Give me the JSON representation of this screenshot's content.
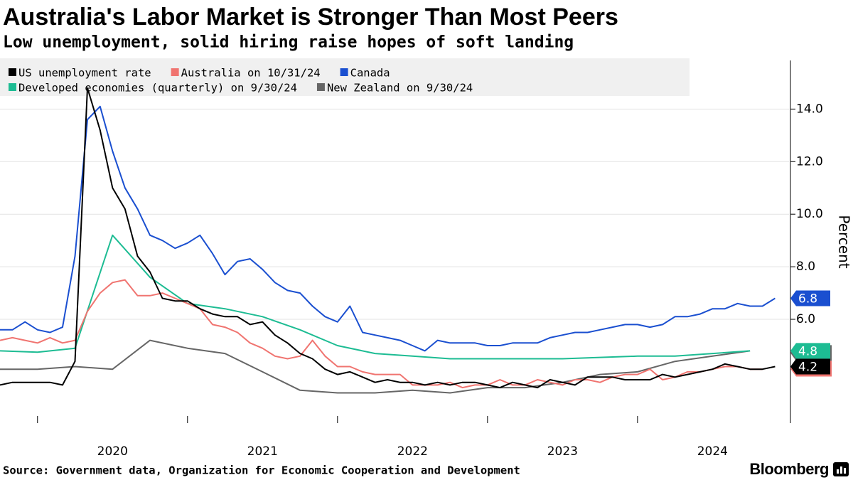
{
  "chart_data": {
    "type": "line",
    "title": "Australia's Labor Market is Stronger Than Most Peers",
    "subtitle": "Low unemployment, solid hiring raise hopes of soft landing",
    "ylabel": "Percent",
    "source": "Source: Government data, Organization for Economic Cooperation and Development",
    "brand": "Bloomberg",
    "xlim": [
      2019.75,
      2025.01
    ],
    "xticks": [
      {
        "value": 2020.5,
        "label": "2020"
      },
      {
        "value": 2021.5,
        "label": "2021"
      },
      {
        "value": 2022.5,
        "label": "2022"
      },
      {
        "value": 2023.5,
        "label": "2023"
      },
      {
        "value": 2024.5,
        "label": "2024"
      }
    ],
    "year_marks": [
      2020,
      2021,
      2022,
      2023,
      2024
    ],
    "ylim": [
      2.05,
      15.85
    ],
    "yticks": [
      {
        "value": 6,
        "label": "6.0"
      },
      {
        "value": 8,
        "label": "8.0"
      },
      {
        "value": 10,
        "label": "10.0"
      },
      {
        "value": 12,
        "label": "12.0"
      },
      {
        "value": 14,
        "label": "14.0"
      }
    ],
    "grid": true,
    "series": [
      {
        "name": "US unemployment rate",
        "color": "#000000",
        "x": [
          2019.75,
          2019.833,
          2019.917,
          2020,
          2020.083,
          2020.167,
          2020.25,
          2020.333,
          2020.417,
          2020.5,
          2020.583,
          2020.667,
          2020.75,
          2020.833,
          2020.917,
          2021,
          2021.083,
          2021.167,
          2021.25,
          2021.333,
          2021.417,
          2021.5,
          2021.583,
          2021.667,
          2021.75,
          2021.833,
          2021.917,
          2022,
          2022.083,
          2022.167,
          2022.25,
          2022.333,
          2022.417,
          2022.5,
          2022.583,
          2022.667,
          2022.75,
          2022.833,
          2022.917,
          2023,
          2023.083,
          2023.167,
          2023.25,
          2023.333,
          2023.417,
          2023.5,
          2023.583,
          2023.667,
          2023.75,
          2023.833,
          2023.917,
          2024,
          2024.083,
          2024.167,
          2024.25,
          2024.333,
          2024.417,
          2024.5,
          2024.583,
          2024.667,
          2024.75,
          2024.833,
          2024.917
        ],
        "values": [
          3.5,
          3.6,
          3.6,
          3.6,
          3.6,
          3.5,
          4.4,
          14.8,
          13.2,
          11.0,
          10.2,
          8.4,
          7.8,
          6.8,
          6.7,
          6.7,
          6.4,
          6.2,
          6.1,
          6.1,
          5.8,
          5.9,
          5.4,
          5.1,
          4.7,
          4.5,
          4.1,
          3.9,
          4.0,
          3.8,
          3.6,
          3.7,
          3.6,
          3.6,
          3.5,
          3.6,
          3.5,
          3.6,
          3.6,
          3.5,
          3.4,
          3.6,
          3.5,
          3.4,
          3.7,
          3.6,
          3.5,
          3.8,
          3.8,
          3.8,
          3.7,
          3.7,
          3.7,
          3.9,
          3.8,
          3.9,
          4.0,
          4.1,
          4.3,
          4.2,
          4.1,
          4.1,
          4.2
        ]
      },
      {
        "name": "Australia on 10/31/24",
        "color": "#f07470",
        "x": [
          2019.75,
          2019.833,
          2019.917,
          2020,
          2020.083,
          2020.167,
          2020.25,
          2020.333,
          2020.417,
          2020.5,
          2020.583,
          2020.667,
          2020.75,
          2020.833,
          2020.917,
          2021,
          2021.083,
          2021.167,
          2021.25,
          2021.333,
          2021.417,
          2021.5,
          2021.583,
          2021.667,
          2021.75,
          2021.833,
          2021.917,
          2022,
          2022.083,
          2022.167,
          2022.25,
          2022.333,
          2022.417,
          2022.5,
          2022.583,
          2022.667,
          2022.75,
          2022.833,
          2022.917,
          2023,
          2023.083,
          2023.167,
          2023.25,
          2023.333,
          2023.417,
          2023.5,
          2023.583,
          2023.667,
          2023.75,
          2023.833,
          2023.917,
          2024,
          2024.083,
          2024.167,
          2024.25,
          2024.333,
          2024.417,
          2024.5,
          2024.583,
          2024.667,
          2024.75,
          2024.833
        ],
        "values": [
          5.2,
          5.3,
          5.2,
          5.1,
          5.3,
          5.1,
          5.2,
          6.3,
          7.0,
          7.4,
          7.5,
          6.9,
          6.9,
          7.0,
          6.8,
          6.6,
          6.4,
          5.8,
          5.7,
          5.5,
          5.1,
          4.9,
          4.6,
          4.5,
          4.6,
          5.2,
          4.6,
          4.2,
          4.2,
          4.0,
          3.9,
          3.9,
          3.9,
          3.5,
          3.5,
          3.5,
          3.6,
          3.4,
          3.5,
          3.5,
          3.7,
          3.5,
          3.5,
          3.7,
          3.6,
          3.5,
          3.7,
          3.7,
          3.6,
          3.8,
          3.9,
          3.9,
          4.1,
          3.7,
          3.8,
          4.0,
          4.0,
          4.1,
          4.2,
          4.2,
          4.1,
          4.1
        ]
      },
      {
        "name": "Canada",
        "color": "#1a4fd0",
        "x": [
          2019.75,
          2019.833,
          2019.917,
          2020,
          2020.083,
          2020.167,
          2020.25,
          2020.333,
          2020.417,
          2020.5,
          2020.583,
          2020.667,
          2020.75,
          2020.833,
          2020.917,
          2021,
          2021.083,
          2021.167,
          2021.25,
          2021.333,
          2021.417,
          2021.5,
          2021.583,
          2021.667,
          2021.75,
          2021.833,
          2021.917,
          2022,
          2022.083,
          2022.167,
          2022.25,
          2022.333,
          2022.417,
          2022.5,
          2022.583,
          2022.667,
          2022.75,
          2022.833,
          2022.917,
          2023,
          2023.083,
          2023.167,
          2023.25,
          2023.333,
          2023.417,
          2023.5,
          2023.583,
          2023.667,
          2023.75,
          2023.833,
          2023.917,
          2024,
          2024.083,
          2024.167,
          2024.25,
          2024.333,
          2024.417,
          2024.5,
          2024.583,
          2024.667,
          2024.75,
          2024.833,
          2024.917
        ],
        "values": [
          5.6,
          5.6,
          5.9,
          5.6,
          5.5,
          5.7,
          8.4,
          13.6,
          14.1,
          12.4,
          11.0,
          10.2,
          9.2,
          9.0,
          8.7,
          8.9,
          9.2,
          8.5,
          7.7,
          8.2,
          8.3,
          7.9,
          7.4,
          7.1,
          7.0,
          6.5,
          6.1,
          5.9,
          6.5,
          5.5,
          5.4,
          5.3,
          5.2,
          5.0,
          4.8,
          5.2,
          5.1,
          5.1,
          5.1,
          5.0,
          5.0,
          5.1,
          5.1,
          5.1,
          5.3,
          5.4,
          5.5,
          5.5,
          5.6,
          5.7,
          5.8,
          5.8,
          5.7,
          5.8,
          6.1,
          6.1,
          6.2,
          6.4,
          6.4,
          6.6,
          6.5,
          6.5,
          6.8
        ]
      },
      {
        "name": "Developed economies (quarterly) on 9/30/24",
        "color": "#1dbc93",
        "x": [
          2019.75,
          2020,
          2020.25,
          2020.5,
          2020.75,
          2021,
          2021.25,
          2021.5,
          2021.75,
          2022,
          2022.25,
          2022.5,
          2022.75,
          2023,
          2023.25,
          2023.5,
          2023.75,
          2024,
          2024.25,
          2024.5,
          2024.75
        ],
        "values": [
          4.8,
          4.75,
          4.9,
          9.2,
          7.6,
          6.6,
          6.4,
          6.1,
          5.6,
          5.0,
          4.7,
          4.6,
          4.5,
          4.5,
          4.5,
          4.5,
          4.55,
          4.6,
          4.6,
          4.7,
          4.8
        ]
      },
      {
        "name": "New Zealand on 9/30/24",
        "color": "#666666",
        "x": [
          2019.75,
          2020,
          2020.25,
          2020.5,
          2020.75,
          2021,
          2021.25,
          2021.5,
          2021.75,
          2022,
          2022.25,
          2022.5,
          2022.75,
          2023,
          2023.25,
          2023.5,
          2023.75,
          2024,
          2024.25,
          2024.5,
          2024.75
        ],
        "values": [
          4.1,
          4.1,
          4.2,
          4.1,
          5.2,
          4.9,
          4.7,
          4.0,
          3.3,
          3.2,
          3.2,
          3.3,
          3.2,
          3.4,
          3.4,
          3.6,
          3.9,
          4.0,
          4.4,
          4.6,
          4.8
        ]
      }
    ]
  }
}
